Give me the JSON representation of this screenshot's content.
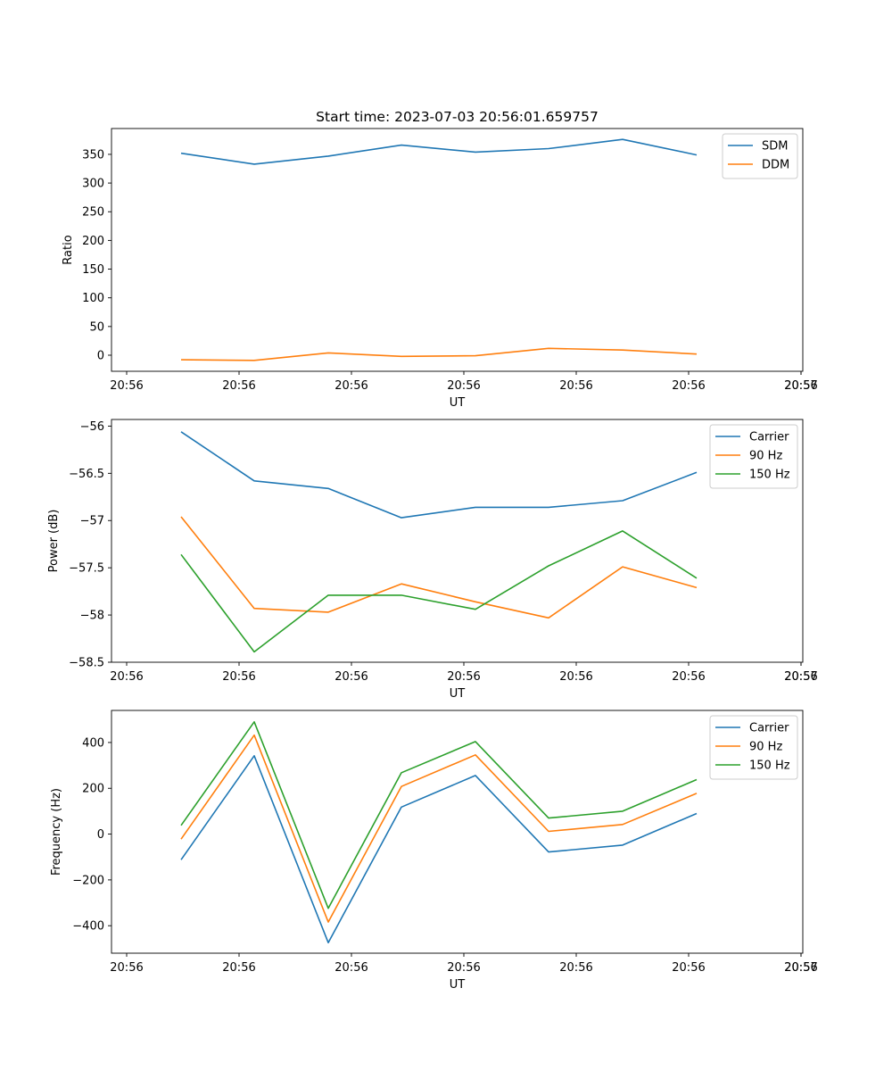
{
  "chart_data": [
    {
      "type": "line",
      "title": "Start time: 2023-07-03 20:56:01.659757",
      "xlabel": "UT",
      "ylabel": "Ratio",
      "x_ticks": [
        "20:56",
        "20:56",
        "20:56",
        "20:56",
        "20:56",
        "20:56",
        "20:56",
        "20:57"
      ],
      "y_ticks": [
        0,
        50,
        100,
        150,
        200,
        250,
        300,
        350
      ],
      "ylim": [
        -28,
        395
      ],
      "legend": "top-right",
      "series": [
        {
          "name": "SDM",
          "color": "#1f77b4",
          "values": [
            352,
            333,
            347,
            366,
            354,
            360,
            376,
            349
          ]
        },
        {
          "name": "DDM",
          "color": "#ff7f0e",
          "values": [
            -8,
            -9,
            4,
            -2,
            -1,
            12,
            9,
            2
          ]
        }
      ]
    },
    {
      "type": "line",
      "title": "",
      "xlabel": "UT",
      "ylabel": "Power (dB)",
      "x_ticks": [
        "20:56",
        "20:56",
        "20:56",
        "20:56",
        "20:56",
        "20:56",
        "20:56",
        "20:57"
      ],
      "y_ticks": [
        -56.0,
        -56.5,
        -57.0,
        -57.5,
        -58.0,
        -58.5
      ],
      "ylim": [
        -58.5,
        -55.93
      ],
      "legend": "top-right",
      "series": [
        {
          "name": "Carrier",
          "color": "#1f77b4",
          "values": [
            -56.06,
            -56.58,
            -56.66,
            -56.97,
            -56.86,
            -56.86,
            -56.79,
            -56.49
          ]
        },
        {
          "name": "90 Hz",
          "color": "#ff7f0e",
          "values": [
            -56.96,
            -57.93,
            -57.97,
            -57.67,
            -57.86,
            -58.03,
            -57.49,
            -57.71
          ]
        },
        {
          "name": "150 Hz",
          "color": "#2ca02c",
          "values": [
            -57.36,
            -58.39,
            -57.79,
            -57.79,
            -57.94,
            -57.48,
            -57.11,
            -57.61
          ]
        }
      ]
    },
    {
      "type": "line",
      "title": "",
      "xlabel": "UT",
      "ylabel": "Frequency (Hz)",
      "x_ticks": [
        "20:56",
        "20:56",
        "20:56",
        "20:56",
        "20:56",
        "20:56",
        "20:56",
        "20:57"
      ],
      "y_ticks": [
        400,
        200,
        0,
        -200,
        -400
      ],
      "ylim": [
        -520,
        540
      ],
      "legend": "top-right",
      "series": [
        {
          "name": "Carrier",
          "color": "#1f77b4",
          "values": [
            -112,
            342,
            -474,
            118,
            256,
            -78,
            -48,
            90
          ]
        },
        {
          "name": "90 Hz",
          "color": "#ff7f0e",
          "values": [
            -22,
            432,
            -384,
            208,
            346,
            12,
            42,
            178
          ]
        },
        {
          "name": "150 Hz",
          "color": "#2ca02c",
          "values": [
            38,
            490,
            -324,
            268,
            404,
            70,
            100,
            238
          ]
        }
      ]
    }
  ]
}
